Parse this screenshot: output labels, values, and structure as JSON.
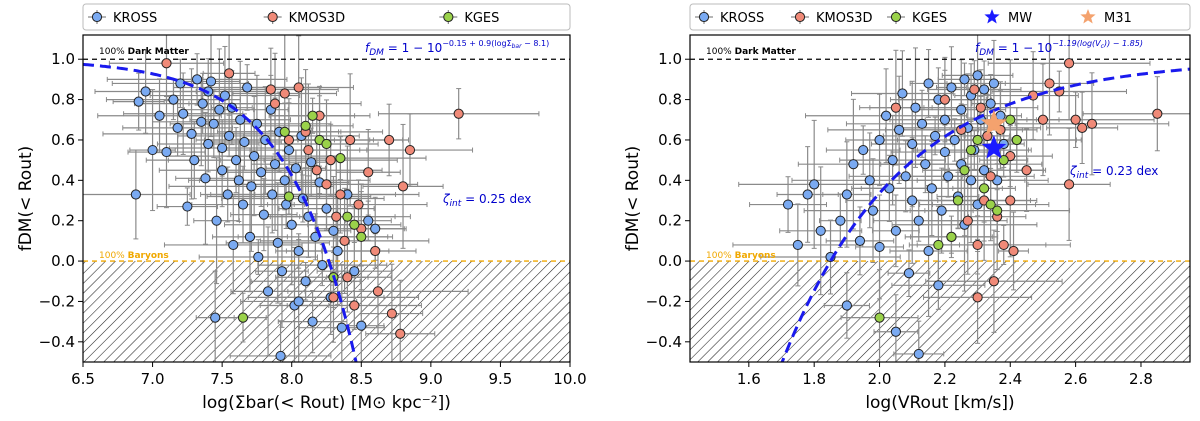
{
  "colors": {
    "kross": "#7aaaf2",
    "kmos3d": "#f08a78",
    "kges": "#9ad24a",
    "mw": "#1a1aff",
    "m31": "#f4a26e",
    "fit": "#1a1aee",
    "baryons": "#f0a800",
    "errorbar": "#8a8a8a"
  },
  "chart_data": [
    {
      "type": "scatter",
      "legend": [
        "KROSS",
        "KMOS3D",
        "KGES"
      ],
      "legend_position": "top",
      "xlabel": "log(Σbar(< Rout) [M⊙ kpc⁻²])",
      "ylabel": "fDM(< Rout)",
      "xlim": [
        6.5,
        10.0
      ],
      "ylim": [
        -0.5,
        1.12
      ],
      "xticks": [
        "6.5",
        "7.0",
        "7.5",
        "8.0",
        "8.5",
        "9.0",
        "9.5",
        "10.0"
      ],
      "yticks": [
        "−0.4",
        "−0.2",
        "0.0",
        "0.2",
        "0.4",
        "0.6",
        "0.8",
        "1.0"
      ],
      "dm_label_prefix": "100%",
      "dm_label_bold": "Dark Matter",
      "baryon_label_prefix": "100%",
      "baryon_label_bold": "Baryons",
      "fit_formula": "fDM = 1 − 10^(−0.15 + 0.9(logΣbar − 8.1))",
      "fit_display": "f_DM = 1 − 10^{−0.15 + 0.9(logΣ_bar − 8.1)}",
      "scatter_label": "ζint = 0.25 dex",
      "scatter_label_display": "ζ_int = 0.25 dex",
      "fit": {
        "a": -0.15,
        "b": 0.9,
        "x0": 8.1
      },
      "series": [
        {
          "name": "KROSS",
          "points": [
            [
              6.88,
              0.33
            ],
            [
              6.9,
              0.79
            ],
            [
              6.95,
              0.84
            ],
            [
              7.0,
              0.55
            ],
            [
              7.05,
              0.72
            ],
            [
              7.1,
              0.54
            ],
            [
              7.15,
              0.8
            ],
            [
              7.18,
              0.66
            ],
            [
              7.2,
              0.88
            ],
            [
              7.22,
              0.73
            ],
            [
              7.25,
              0.27
            ],
            [
              7.28,
              0.63
            ],
            [
              7.3,
              0.5
            ],
            [
              7.32,
              0.9
            ],
            [
              7.35,
              0.69
            ],
            [
              7.36,
              0.78
            ],
            [
              7.38,
              0.41
            ],
            [
              7.4,
              0.58
            ],
            [
              7.4,
              0.84
            ],
            [
              7.42,
              0.89
            ],
            [
              7.44,
              0.68
            ],
            [
              7.46,
              0.2
            ],
            [
              7.48,
              0.75
            ],
            [
              7.5,
              0.56
            ],
            [
              7.5,
              0.45
            ],
            [
              7.52,
              0.82
            ],
            [
              7.54,
              0.33
            ],
            [
              7.55,
              0.62
            ],
            [
              7.57,
              0.76
            ],
            [
              7.58,
              0.08
            ],
            [
              7.6,
              0.5
            ],
            [
              7.62,
              0.4
            ],
            [
              7.63,
              0.7
            ],
            [
              7.65,
              0.28
            ],
            [
              7.66,
              0.59
            ],
            [
              7.68,
              0.86
            ],
            [
              7.7,
              0.12
            ],
            [
              7.71,
              0.37
            ],
            [
              7.73,
              0.52
            ],
            [
              7.75,
              0.68
            ],
            [
              7.76,
              0.02
            ],
            [
              7.78,
              0.44
            ],
            [
              7.8,
              0.23
            ],
            [
              7.81,
              0.6
            ],
            [
              7.83,
              -0.15
            ],
            [
              7.85,
              0.75
            ],
            [
              7.86,
              0.33
            ],
            [
              7.88,
              0.48
            ],
            [
              7.9,
              0.09
            ],
            [
              7.91,
              0.64
            ],
            [
              7.93,
              -0.05
            ],
            [
              7.95,
              0.4
            ],
            [
              7.96,
              0.28
            ],
            [
              7.98,
              0.55
            ],
            [
              8.0,
              0.18
            ],
            [
              8.02,
              -0.22
            ],
            [
              8.03,
              0.46
            ],
            [
              8.05,
              0.05
            ],
            [
              8.07,
              0.62
            ],
            [
              8.08,
              0.31
            ],
            [
              8.1,
              -0.1
            ],
            [
              8.12,
              0.22
            ],
            [
              8.14,
              0.49
            ],
            [
              8.15,
              -0.3
            ],
            [
              8.17,
              0.12
            ],
            [
              8.2,
              0.39
            ],
            [
              8.22,
              -0.02
            ],
            [
              8.25,
              0.26
            ],
            [
              8.28,
              -0.18
            ],
            [
              8.3,
              0.15
            ],
            [
              8.33,
              0.05
            ],
            [
              8.36,
              -0.33
            ],
            [
              8.4,
              0.33
            ],
            [
              8.45,
              -0.05
            ],
            [
              8.5,
              -0.32
            ],
            [
              8.55,
              0.2
            ],
            [
              8.6,
              0.16
            ],
            [
              7.45,
              -0.28
            ],
            [
              7.92,
              -0.47
            ],
            [
              8.05,
              -0.2
            ]
          ]
        },
        {
          "name": "KMOS3D",
          "points": [
            [
              7.1,
              0.98
            ],
            [
              7.55,
              0.93
            ],
            [
              7.85,
              0.85
            ],
            [
              7.88,
              0.78
            ],
            [
              7.95,
              0.83
            ],
            [
              7.98,
              0.6
            ],
            [
              8.05,
              0.86
            ],
            [
              8.1,
              0.64
            ],
            [
              8.12,
              0.55
            ],
            [
              8.18,
              0.45
            ],
            [
              8.2,
              0.72
            ],
            [
              8.25,
              0.38
            ],
            [
              8.28,
              0.5
            ],
            [
              8.32,
              0.22
            ],
            [
              8.35,
              0.33
            ],
            [
              8.38,
              0.1
            ],
            [
              8.4,
              -0.08
            ],
            [
              8.42,
              0.6
            ],
            [
              8.45,
              -0.22
            ],
            [
              8.48,
              0.28
            ],
            [
              8.55,
              0.44
            ],
            [
              8.6,
              0.05
            ],
            [
              8.62,
              -0.15
            ],
            [
              8.7,
              0.6
            ],
            [
              8.72,
              -0.26
            ],
            [
              8.78,
              -0.36
            ],
            [
              8.8,
              0.37
            ],
            [
              8.85,
              0.55
            ],
            [
              9.2,
              0.73
            ],
            [
              8.5,
              0.16
            ],
            [
              8.3,
              -0.18
            ]
          ]
        },
        {
          "name": "KGES",
          "points": [
            [
              7.65,
              -0.28
            ],
            [
              7.95,
              0.64
            ],
            [
              8.1,
              0.67
            ],
            [
              8.15,
              0.72
            ],
            [
              8.2,
              0.6
            ],
            [
              8.25,
              0.58
            ],
            [
              8.35,
              0.51
            ],
            [
              8.4,
              0.22
            ],
            [
              8.45,
              0.18
            ],
            [
              8.5,
              0.12
            ],
            [
              7.98,
              0.32
            ],
            [
              8.3,
              -0.08
            ]
          ]
        }
      ]
    },
    {
      "type": "scatter",
      "legend": [
        "KROSS",
        "KMOS3D",
        "KGES",
        "MW",
        "M31"
      ],
      "legend_position": "top",
      "xlabel": "log(VRout [km/s])",
      "ylabel": "fDM(< Rout)",
      "xlim": [
        1.42,
        2.95
      ],
      "ylim": [
        -0.5,
        1.12
      ],
      "xticks": [
        "1.6",
        "1.8",
        "2.0",
        "2.2",
        "2.4",
        "2.6",
        "2.8"
      ],
      "yticks": [
        "−0.4",
        "−0.2",
        "0.0",
        "0.2",
        "0.4",
        "0.6",
        "0.8",
        "1.0"
      ],
      "dm_label_prefix": "100%",
      "dm_label_bold": "Dark Matter",
      "baryon_label_prefix": "100%",
      "baryon_label_bold": "Baryons",
      "fit_formula": "fDM = 1 − 10^(−1.19(log(Vc) − 1.85))",
      "fit_display": "f_DM = 1 − 10^{−1.19(log(V_c) − 1.85)}",
      "scatter_label": "ζint = 0.23 dex",
      "scatter_label_display": "ζ_int = 0.23 dex",
      "fit": {
        "k": -1.19,
        "x0": 1.85
      },
      "mw": [
        2.35,
        0.56
      ],
      "m31": [
        2.35,
        0.68
      ],
      "series": [
        {
          "name": "KROSS",
          "points": [
            [
              1.72,
              0.28
            ],
            [
              1.75,
              0.08
            ],
            [
              1.78,
              0.33
            ],
            [
              1.8,
              0.38
            ],
            [
              1.82,
              0.15
            ],
            [
              1.85,
              0.02
            ],
            [
              1.88,
              0.2
            ],
            [
              1.9,
              0.33
            ],
            [
              1.92,
              0.48
            ],
            [
              1.94,
              0.1
            ],
            [
              1.95,
              0.55
            ],
            [
              1.97,
              0.4
            ],
            [
              1.98,
              0.25
            ],
            [
              2.0,
              0.6
            ],
            [
              2.0,
              0.07
            ],
            [
              2.02,
              0.72
            ],
            [
              2.03,
              0.36
            ],
            [
              2.04,
              0.5
            ],
            [
              2.05,
              0.15
            ],
            [
              2.06,
              0.65
            ],
            [
              2.07,
              0.83
            ],
            [
              2.08,
              0.42
            ],
            [
              2.09,
              -0.06
            ],
            [
              2.1,
              0.58
            ],
            [
              2.1,
              0.3
            ],
            [
              2.11,
              0.76
            ],
            [
              2.12,
              0.2
            ],
            [
              2.13,
              0.68
            ],
            [
              2.14,
              0.48
            ],
            [
              2.15,
              0.88
            ],
            [
              2.15,
              0.05
            ],
            [
              2.16,
              0.36
            ],
            [
              2.17,
              0.62
            ],
            [
              2.18,
              -0.12
            ],
            [
              2.18,
              0.8
            ],
            [
              2.19,
              0.25
            ],
            [
              2.2,
              0.54
            ],
            [
              2.2,
              0.7
            ],
            [
              2.21,
              0.42
            ],
            [
              2.22,
              0.86
            ],
            [
              2.22,
              0.12
            ],
            [
              2.23,
              0.6
            ],
            [
              2.24,
              0.32
            ],
            [
              2.25,
              0.75
            ],
            [
              2.25,
              0.48
            ],
            [
              2.26,
              0.9
            ],
            [
              2.26,
              0.18
            ],
            [
              2.27,
              0.66
            ],
            [
              2.28,
              0.4
            ],
            [
              2.28,
              0.82
            ],
            [
              2.29,
              0.55
            ],
            [
              2.3,
              0.28
            ],
            [
              2.3,
              0.92
            ],
            [
              2.31,
              0.7
            ],
            [
              2.32,
              0.45
            ],
            [
              2.32,
              0.85
            ],
            [
              2.33,
              0.62
            ],
            [
              2.34,
              0.78
            ],
            [
              2.35,
              0.88
            ],
            [
              2.36,
              0.4
            ],
            [
              2.37,
              0.72
            ],
            [
              2.38,
              0.58
            ],
            [
              2.12,
              -0.46
            ],
            [
              1.9,
              -0.22
            ],
            [
              2.05,
              -0.35
            ]
          ]
        },
        {
          "name": "KMOS3D",
          "points": [
            [
              2.05,
              0.76
            ],
            [
              2.2,
              0.8
            ],
            [
              2.25,
              0.65
            ],
            [
              2.27,
              0.2
            ],
            [
              2.29,
              0.85
            ],
            [
              2.3,
              0.08
            ],
            [
              2.31,
              0.76
            ],
            [
              2.32,
              0.3
            ],
            [
              2.33,
              0.62
            ],
            [
              2.34,
              0.42
            ],
            [
              2.35,
              -0.1
            ],
            [
              2.36,
              0.22
            ],
            [
              2.37,
              0.65
            ],
            [
              2.38,
              0.08
            ],
            [
              2.4,
              0.52
            ],
            [
              2.41,
              0.05
            ],
            [
              2.42,
              0.6
            ],
            [
              2.45,
              0.45
            ],
            [
              2.47,
              0.82
            ],
            [
              2.5,
              0.7
            ],
            [
              2.52,
              0.88
            ],
            [
              2.55,
              0.84
            ],
            [
              2.58,
              0.98
            ],
            [
              2.6,
              0.7
            ],
            [
              2.62,
              0.66
            ],
            [
              2.65,
              0.68
            ],
            [
              2.85,
              0.73
            ],
            [
              2.58,
              0.38
            ],
            [
              2.4,
              0.3
            ],
            [
              2.3,
              -0.18
            ]
          ]
        },
        {
          "name": "KGES",
          "points": [
            [
              2.0,
              -0.28
            ],
            [
              2.18,
              0.08
            ],
            [
              2.22,
              0.12
            ],
            [
              2.24,
              0.3
            ],
            [
              2.26,
              0.45
            ],
            [
              2.28,
              0.55
            ],
            [
              2.3,
              0.6
            ],
            [
              2.32,
              0.36
            ],
            [
              2.34,
              0.28
            ],
            [
              2.36,
              0.25
            ],
            [
              2.38,
              0.5
            ],
            [
              2.4,
              0.7
            ],
            [
              2.42,
              0.6
            ]
          ]
        }
      ]
    }
  ]
}
